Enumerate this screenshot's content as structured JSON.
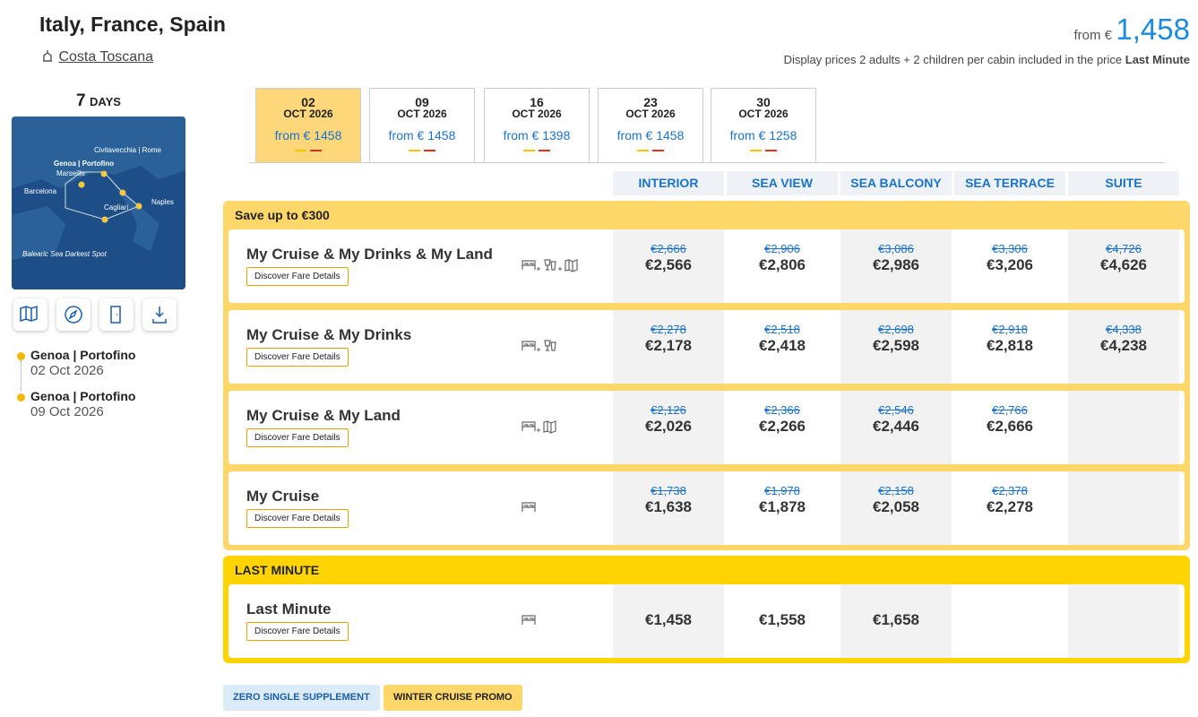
{
  "header": {
    "title": "Italy, France, Spain",
    "ship": "Costa Toscana",
    "price_prefix": "from €",
    "price": "1,458",
    "note": "Display prices 2 adults + 2 children per cabin included in the price",
    "note_strong": "Last Minute"
  },
  "sidebar": {
    "days_number": "7",
    "days_label": "DAYS",
    "map_labels": [
      "Civitavecchia | Rome",
      "Genoa | Portofino",
      "Marseille",
      "Barcelona",
      "Naples",
      "Cagliari",
      "Balearic Sea Darkest Spot"
    ],
    "itinerary": [
      {
        "port": "Genoa | Portofino",
        "date": "02 Oct 2026"
      },
      {
        "port": "Genoa | Portofino",
        "date": "09 Oct 2026"
      }
    ]
  },
  "dates": [
    {
      "day": "02",
      "month": "OCT 2026",
      "price": "from € 1458"
    },
    {
      "day": "09",
      "month": "OCT 2026",
      "price": "from € 1458"
    },
    {
      "day": "16",
      "month": "OCT 2026",
      "price": "from € 1398"
    },
    {
      "day": "23",
      "month": "OCT 2026",
      "price": "from € 1458"
    },
    {
      "day": "30",
      "month": "OCT 2026",
      "price": "from € 1258"
    }
  ],
  "cabins": [
    "INTERIOR",
    "SEA VIEW",
    "SEA BALCONY",
    "SEA TERRACE",
    "SUITE"
  ],
  "groups": [
    {
      "title": "Save up to €300",
      "fares": [
        {
          "name": "My Cruise & My Drinks & My Land",
          "button": "Discover Fare Details",
          "prices": [
            {
              "old": "€2,666",
              "new": "€2,566"
            },
            {
              "old": "€2,906",
              "new": "€2,806"
            },
            {
              "old": "€3,086",
              "new": "€2,986"
            },
            {
              "old": "€3,306",
              "new": "€3,206"
            },
            {
              "old": "€4,726",
              "new": "€4,626"
            }
          ]
        },
        {
          "name": "My Cruise & My Drinks",
          "button": "Discover Fare Details",
          "prices": [
            {
              "old": "€2,278",
              "new": "€2,178"
            },
            {
              "old": "€2,518",
              "new": "€2,418"
            },
            {
              "old": "€2,698",
              "new": "€2,598"
            },
            {
              "old": "€2,918",
              "new": "€2,818"
            },
            {
              "old": "€4,338",
              "new": "€4,238"
            }
          ]
        },
        {
          "name": "My Cruise & My Land",
          "button": "Discover Fare Details",
          "prices": [
            {
              "old": "€2,126",
              "new": "€2,026"
            },
            {
              "old": "€2,366",
              "new": "€2,266"
            },
            {
              "old": "€2,546",
              "new": "€2,446"
            },
            {
              "old": "€2,766",
              "new": "€2,666"
            }
          ]
        },
        {
          "name": "My Cruise",
          "button": "Discover Fare Details",
          "prices": [
            {
              "old": "€1,738",
              "new": "€1,638"
            },
            {
              "old": "€1,978",
              "new": "€1,878"
            },
            {
              "old": "€2,158",
              "new": "€2,058"
            },
            {
              "old": "€2,378",
              "new": "€2,278"
            }
          ]
        }
      ]
    },
    {
      "title": "LAST MINUTE",
      "fares": [
        {
          "name": "Last Minute",
          "button": "Discover Fare Details",
          "prices": [
            {
              "new": "€1,458"
            },
            {
              "new": "€1,558"
            },
            {
              "new": "€1,658"
            }
          ]
        }
      ]
    }
  ],
  "tags": [
    "ZERO SINGLE SUPPLEMENT",
    "WINTER CRUISE PROMO"
  ]
}
